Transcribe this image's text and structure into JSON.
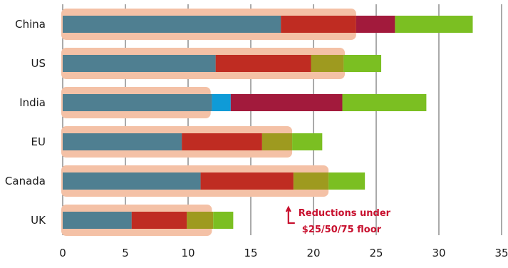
{
  "chart_data": {
    "type": "bar",
    "orientation": "horizontal",
    "stacked": true,
    "categories": [
      "China",
      "US",
      "India",
      "EU",
      "Canada",
      "UK"
    ],
    "xlim": [
      0,
      35
    ],
    "xticks": [
      0,
      5,
      10,
      15,
      20,
      25,
      30,
      35
    ],
    "grid": "vertical",
    "series": [
      {
        "values": [
          17.4,
          12.2,
          11.9,
          9.5,
          11.0,
          5.5
        ],
        "color": "#4f7f91"
      },
      {
        "values": [
          0,
          0,
          1.5,
          0,
          0,
          0
        ],
        "color": "#0f9bd7"
      },
      {
        "values": [
          6.0,
          7.6,
          0,
          6.4,
          7.4,
          4.4
        ],
        "color": "#bf2c22"
      },
      {
        "values": [
          3.1,
          0,
          8.9,
          0,
          0,
          0
        ],
        "color": "#a21a3c"
      },
      {
        "values": [
          0,
          2.6,
          0,
          2.4,
          2.8,
          2.1
        ],
        "color": "#9e9a1f"
      },
      {
        "values": [
          6.2,
          3.0,
          6.7,
          2.4,
          2.9,
          1.6
        ],
        "color": "#7bbf22"
      }
    ],
    "floor": {
      "values": [
        23.4,
        22.5,
        11.8,
        18.3,
        21.2,
        11.9
      ],
      "color": "#f4c1a6"
    },
    "annotation": {
      "line1": "Reductions under",
      "line2": "$25/50/75 floor",
      "x": 18
    }
  }
}
